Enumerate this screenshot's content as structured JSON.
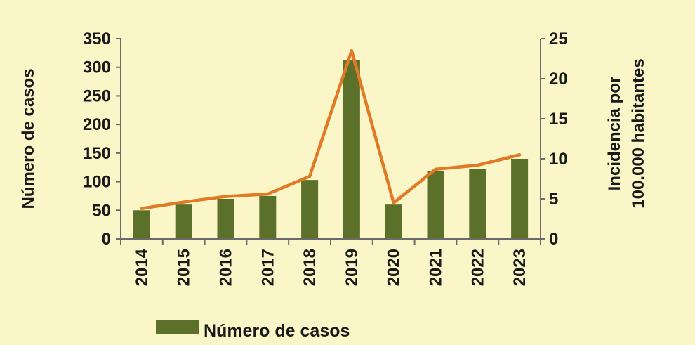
{
  "chart_data": {
    "type": "bar",
    "categories": [
      "2014",
      "2015",
      "2016",
      "2017",
      "2018",
      "2019",
      "2020",
      "2021",
      "2022",
      "2023"
    ],
    "series": [
      {
        "name": "Número de casos",
        "kind": "bar",
        "axis": "left",
        "color": "#5b7028",
        "values": [
          50,
          60,
          70,
          75,
          103,
          313,
          60,
          118,
          122,
          140
        ]
      },
      {
        "name": "",
        "kind": "line",
        "axis": "right",
        "color": "#e07a26",
        "values": [
          3.8,
          4.6,
          5.3,
          5.6,
          7.8,
          23.5,
          4.5,
          8.7,
          9.2,
          10.5
        ]
      }
    ],
    "ylabel": "Número de casos",
    "y2label_lines": [
      "Incidencia por",
      "100.000 habitantes"
    ],
    "ylim": [
      0,
      350
    ],
    "y2lim": [
      0,
      25
    ],
    "yticks": [
      "0",
      "50",
      "100",
      "150",
      "200",
      "250",
      "300",
      "350"
    ],
    "y2ticks": [
      "0",
      "5",
      "10",
      "15",
      "20",
      "25"
    ],
    "legend": [
      {
        "label": "Número de casos",
        "color": "#5b7028"
      }
    ],
    "legend_position": "bottom",
    "grid": false
  }
}
